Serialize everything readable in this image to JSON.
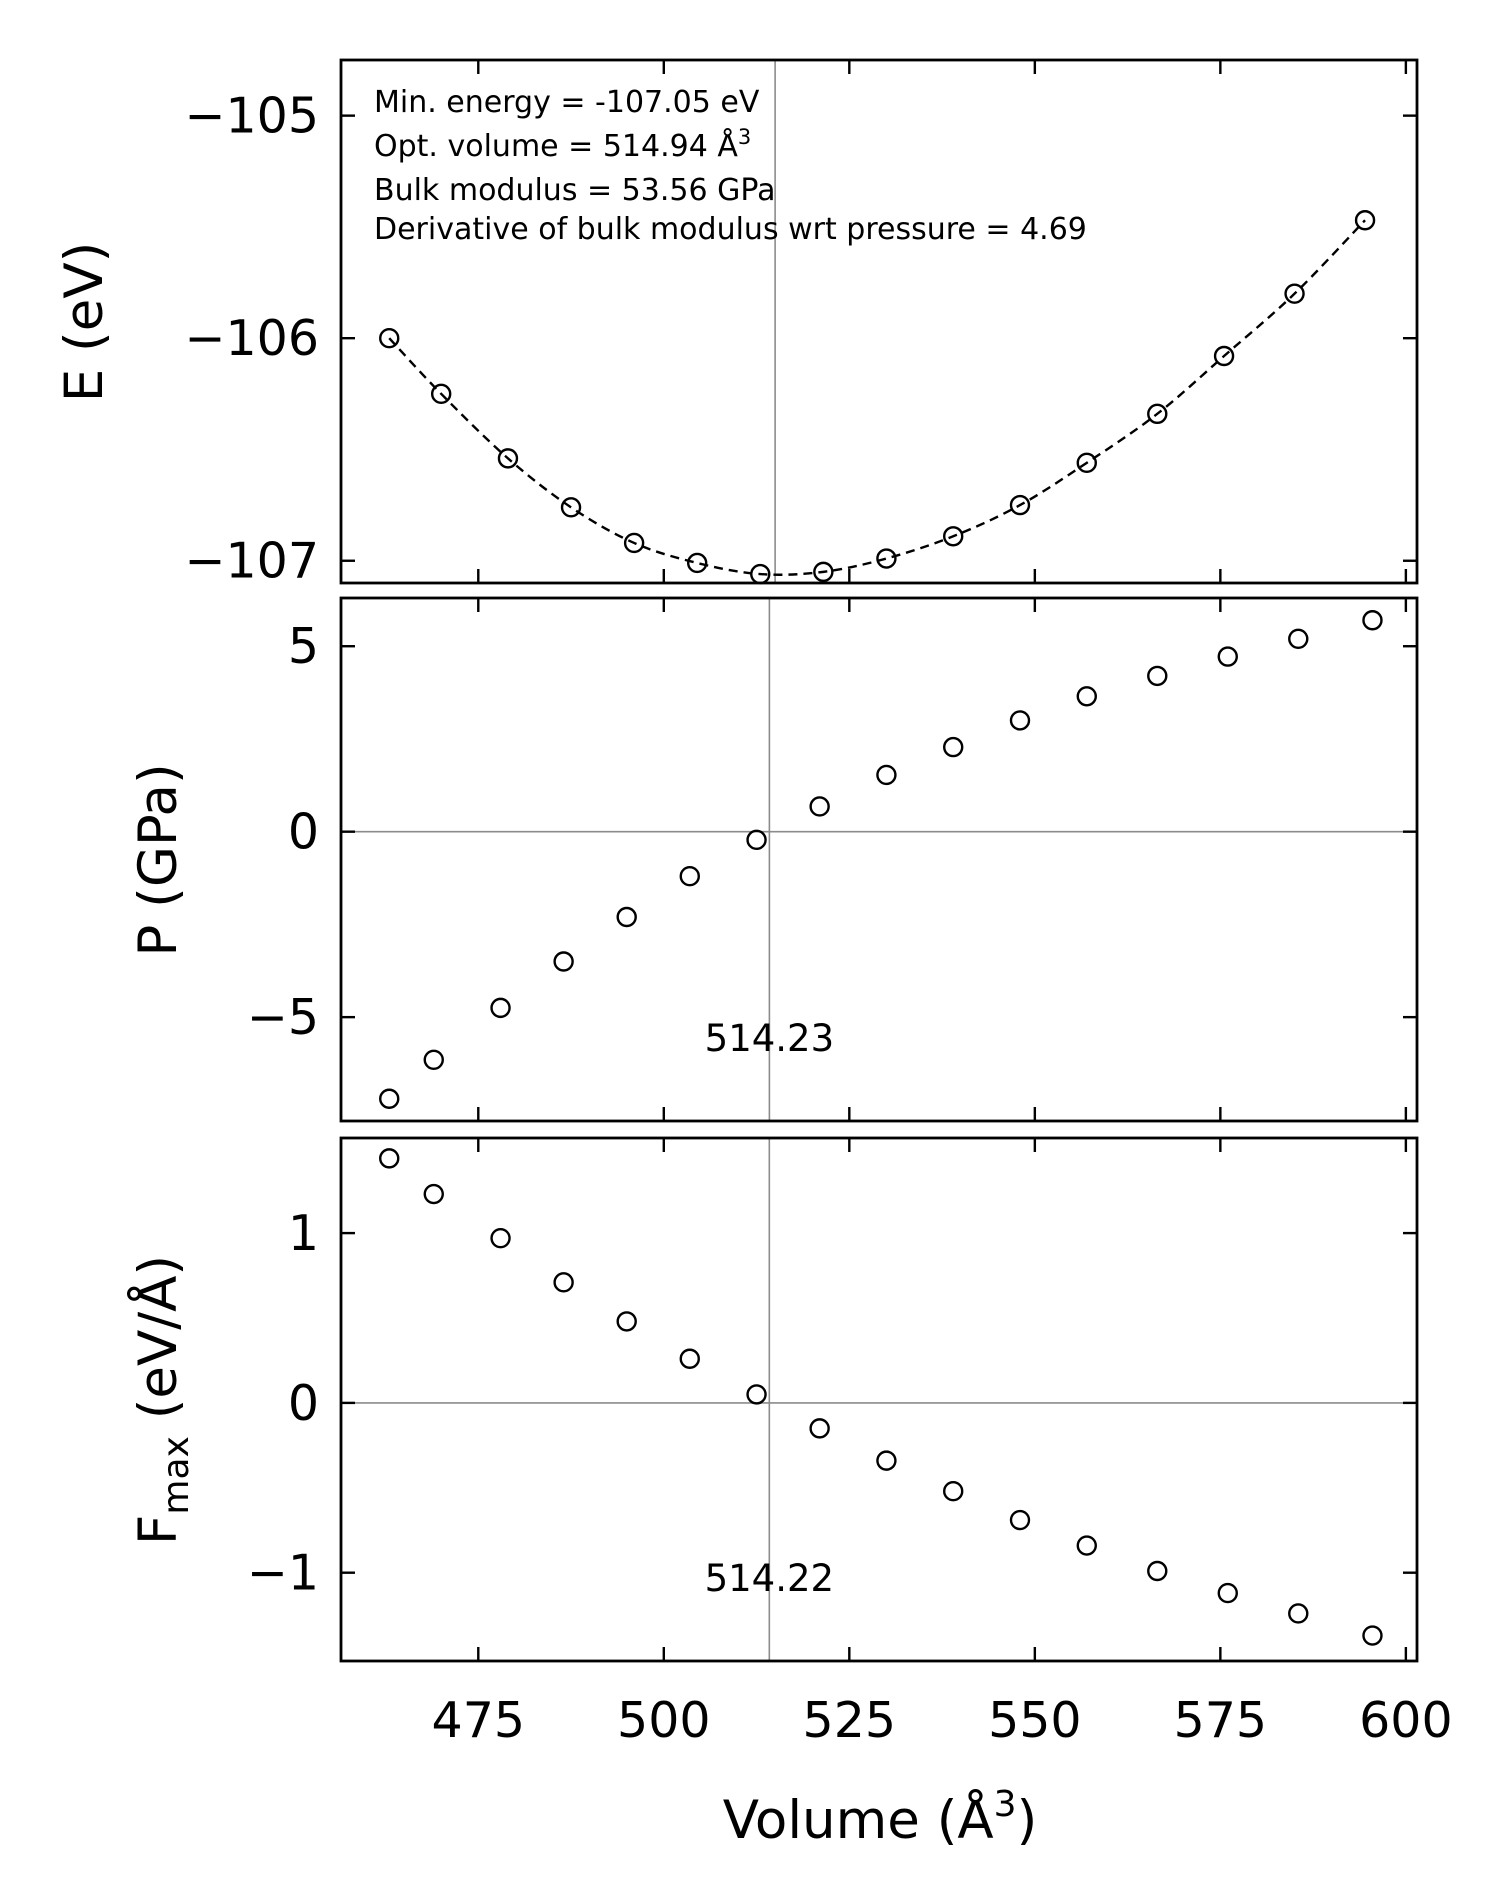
{
  "chart_data": [
    {
      "type": "scatter",
      "panel": "energy",
      "ylabel": "E (eV)",
      "xlim": [
        456.5,
        601.5
      ],
      "ylim": [
        -107.1,
        -104.75
      ],
      "yticks": [
        -105,
        -106,
        -107
      ],
      "ytick_labels": [
        "−105",
        "−106",
        "−107"
      ],
      "x": [
        463,
        470,
        479,
        487.5,
        496,
        504.5,
        513,
        521.5,
        530,
        539,
        548,
        557,
        566.5,
        575.5,
        585,
        594.5
      ],
      "y": [
        -106.0,
        -106.25,
        -106.54,
        -106.76,
        -106.92,
        -107.01,
        -107.06,
        -107.05,
        -106.99,
        -106.89,
        -106.75,
        -106.56,
        -106.34,
        -106.08,
        -105.8,
        -105.47
      ],
      "fit_line": "dashed",
      "vline": 515,
      "annotations": [
        "Min. energy = -107.05 eV",
        "Opt. volume = 514.94 Å",
        "Bulk modulus = 53.56 GPa",
        "Derivative of bulk modulus wrt pressure = 4.69"
      ],
      "annotation_superscript": "3"
    },
    {
      "type": "scatter",
      "panel": "pressure",
      "ylabel": "P (GPa)",
      "xlim": [
        456.5,
        601.5
      ],
      "ylim": [
        -7.8,
        6.3
      ],
      "yticks": [
        5,
        0,
        -5
      ],
      "ytick_labels": [
        "5",
        "0",
        "−5"
      ],
      "x": [
        463,
        469,
        478,
        486.5,
        495,
        503.5,
        512.5,
        521,
        530,
        539,
        548,
        557,
        566.5,
        576,
        585.5,
        595.5
      ],
      "y": [
        -7.2,
        -6.15,
        -4.75,
        -3.5,
        -2.3,
        -1.2,
        -0.22,
        0.68,
        1.53,
        2.28,
        3.0,
        3.65,
        4.2,
        4.72,
        5.2,
        5.7
      ],
      "hline": 0,
      "vline": 514.23,
      "vline_label": "514.23"
    },
    {
      "type": "scatter",
      "panel": "force",
      "ylabel_main": "F",
      "ylabel_sub": "max",
      "ylabel_rest": " (eV/Å)",
      "xlabel_main": "Volume (Å",
      "xlabel_sup": "3",
      "xlabel_end": ")",
      "xlim": [
        456.5,
        601.5
      ],
      "ylim": [
        -1.52,
        1.56
      ],
      "yticks": [
        1,
        0,
        -1
      ],
      "ytick_labels": [
        "1",
        "0",
        "−1"
      ],
      "xticks": [
        475,
        500,
        525,
        550,
        575,
        600
      ],
      "xtick_labels": [
        "475",
        "500",
        "525",
        "550",
        "575",
        "600"
      ],
      "x": [
        463,
        469,
        478,
        486.5,
        495,
        503.5,
        512.5,
        521,
        530,
        539,
        548,
        557,
        566.5,
        576,
        585.5,
        595.5
      ],
      "y": [
        1.44,
        1.23,
        0.97,
        0.71,
        0.48,
        0.26,
        0.05,
        -0.15,
        -0.34,
        -0.52,
        -0.69,
        -0.84,
        -0.99,
        -1.12,
        -1.24,
        -1.37
      ],
      "hline": 0,
      "vline": 514.22,
      "vline_label": "514.22"
    }
  ]
}
